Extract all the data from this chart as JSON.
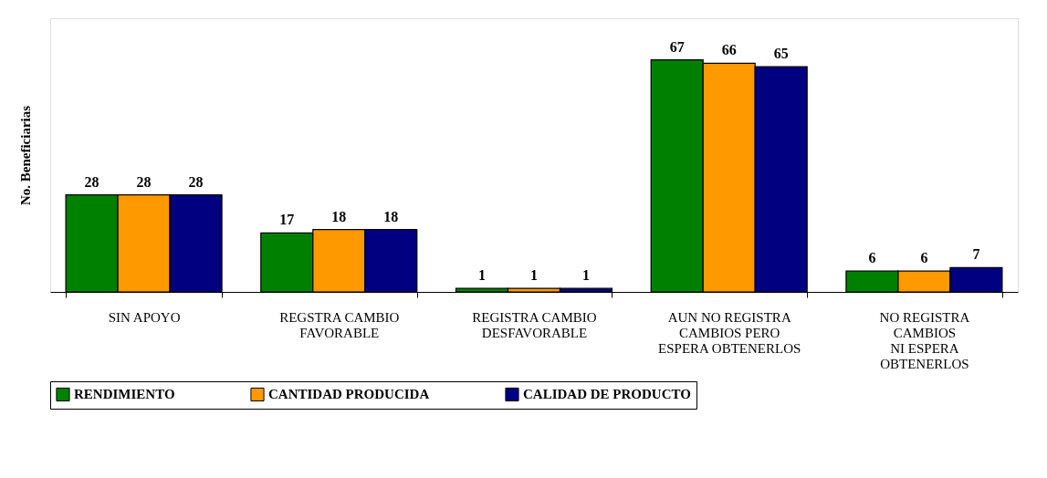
{
  "chart_data": {
    "type": "bar",
    "ylabel": "No. Beneficiarias",
    "categories": [
      "SIN APOYO",
      "REGSTRA CAMBIO\nFAVORABLE",
      "REGISTRA CAMBIO\nDESFAVORABLE",
      "AUN NO REGISTRA\nCAMBIOS PERO\nESPERA OBTENERLOS",
      "NO REGISTRA\nCAMBIOS\nNI ESPERA\nOBTENERLOS"
    ],
    "series": [
      {
        "name": "RENDIMIENTO",
        "color": "#008000",
        "values": [
          28,
          17,
          1,
          67,
          6
        ]
      },
      {
        "name": "CANTIDAD PRODUCIDA",
        "color": "#ff9900",
        "values": [
          28,
          18,
          1,
          66,
          6
        ]
      },
      {
        "name": "CALIDAD DE PRODUCTO",
        "color": "#000080",
        "values": [
          28,
          18,
          1,
          65,
          7
        ]
      }
    ],
    "ylim": [
      0,
      79
    ],
    "data_labels": true,
    "legend": "bottom",
    "grid": false,
    "tick_labels": "x"
  }
}
